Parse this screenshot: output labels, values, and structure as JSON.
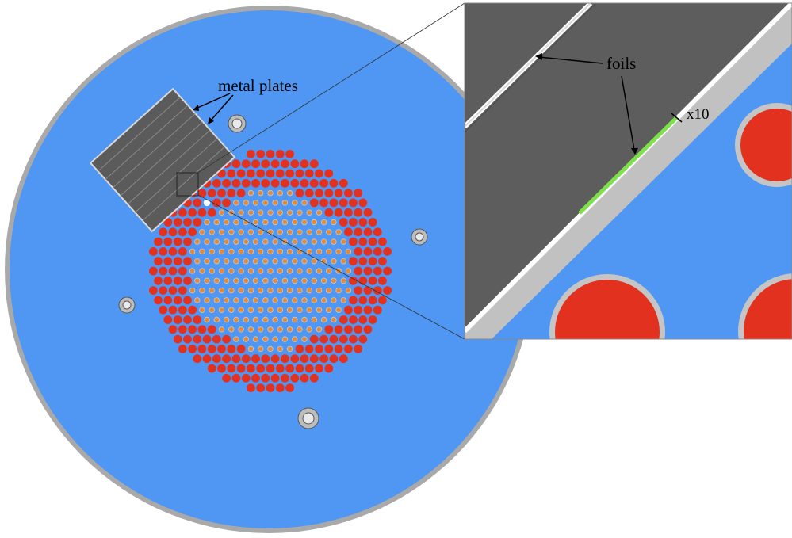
{
  "labels": {
    "plates": "metal plates",
    "foils": "foils",
    "scale": "x10"
  },
  "colors": {
    "coolant": "#4f97f3",
    "reflector": "#c2c2c2",
    "plate": "#5e5e5e",
    "fuel_outer": "#e2321f",
    "fuel_inner": "#e08a3a",
    "foil": "#7fe14a",
    "cladding": "#bfbfbf"
  },
  "core": {
    "outer_pins": "red",
    "inner_pins": "orange",
    "empty_positions": 2
  },
  "zoom_factor": "x10"
}
